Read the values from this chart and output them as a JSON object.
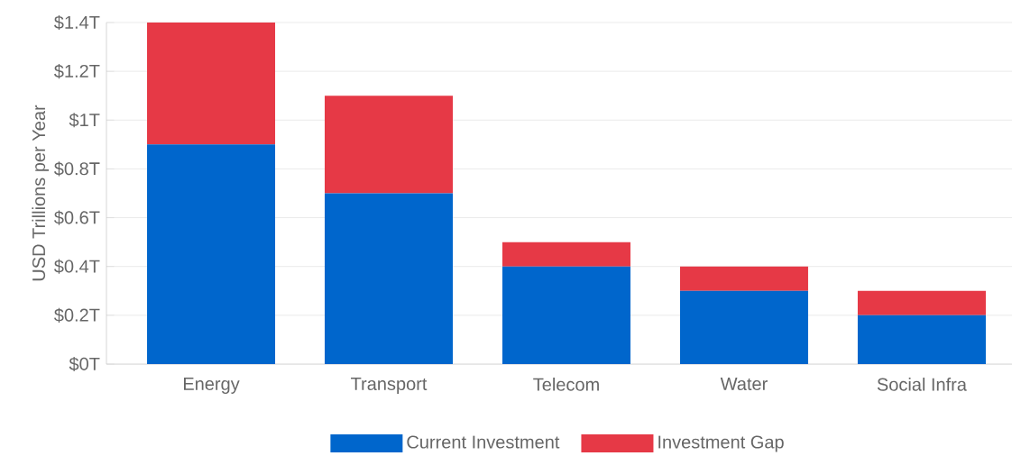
{
  "chart_data": {
    "type": "bar",
    "stacked": true,
    "ylabel": "USD Trillions per Year",
    "categories": [
      "Energy",
      "Transport",
      "Telecom",
      "Water",
      "Social Infra"
    ],
    "series": [
      {
        "name": "Current Investment",
        "color": "#0066cc",
        "values": [
          0.9,
          0.7,
          0.4,
          0.3,
          0.2
        ]
      },
      {
        "name": "Investment Gap",
        "color": "#e63946",
        "values": [
          0.5,
          0.4,
          0.1,
          0.1,
          0.1
        ]
      }
    ],
    "ylim": [
      0,
      1.4
    ],
    "yticks": [
      {
        "value": 0,
        "label": "$0T"
      },
      {
        "value": 0.2,
        "label": "$0.2T"
      },
      {
        "value": 0.4,
        "label": "$0.4T"
      },
      {
        "value": 0.6,
        "label": "$0.6T"
      },
      {
        "value": 0.8,
        "label": "$0.8T"
      },
      {
        "value": 1,
        "label": "$1T"
      },
      {
        "value": 1.2,
        "label": "$1.2T"
      },
      {
        "value": 1.4,
        "label": "$1.4T"
      }
    ],
    "grid": "y",
    "legend": "bottom"
  }
}
